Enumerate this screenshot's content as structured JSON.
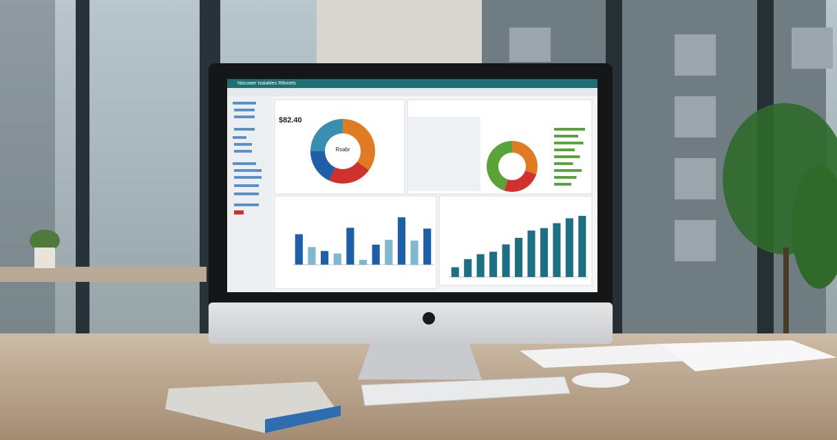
{
  "screen": {
    "window_title": "Nocuwer Isaiaktes Rtlonets",
    "total": "$82.40",
    "donut_center": "Rsabr",
    "donut": {
      "values": [
        35,
        22,
        18,
        25
      ],
      "colors": [
        "#e07b24",
        "#d0312d",
        "#1f5fa8",
        "#3a8fb0"
      ]
    },
    "donut2": {
      "values": [
        30,
        25,
        45
      ],
      "colors": [
        "#e07b24",
        "#d0312d",
        "#5aa339"
      ]
    },
    "hbars": {
      "values": [
        90,
        70,
        85,
        60,
        75,
        55,
        80,
        65,
        50
      ],
      "color": "#5aa339"
    },
    "bars1": {
      "values": [
        38,
        22,
        17,
        14,
        46,
        6,
        25,
        31,
        59,
        30,
        45
      ],
      "colors": [
        "#1f5fa8",
        "#7fb8cf"
      ]
    },
    "bars2": {
      "values": [
        12,
        22,
        28,
        31,
        40,
        48,
        57,
        60,
        66,
        72,
        75
      ],
      "color": "#1d6f84"
    }
  }
}
